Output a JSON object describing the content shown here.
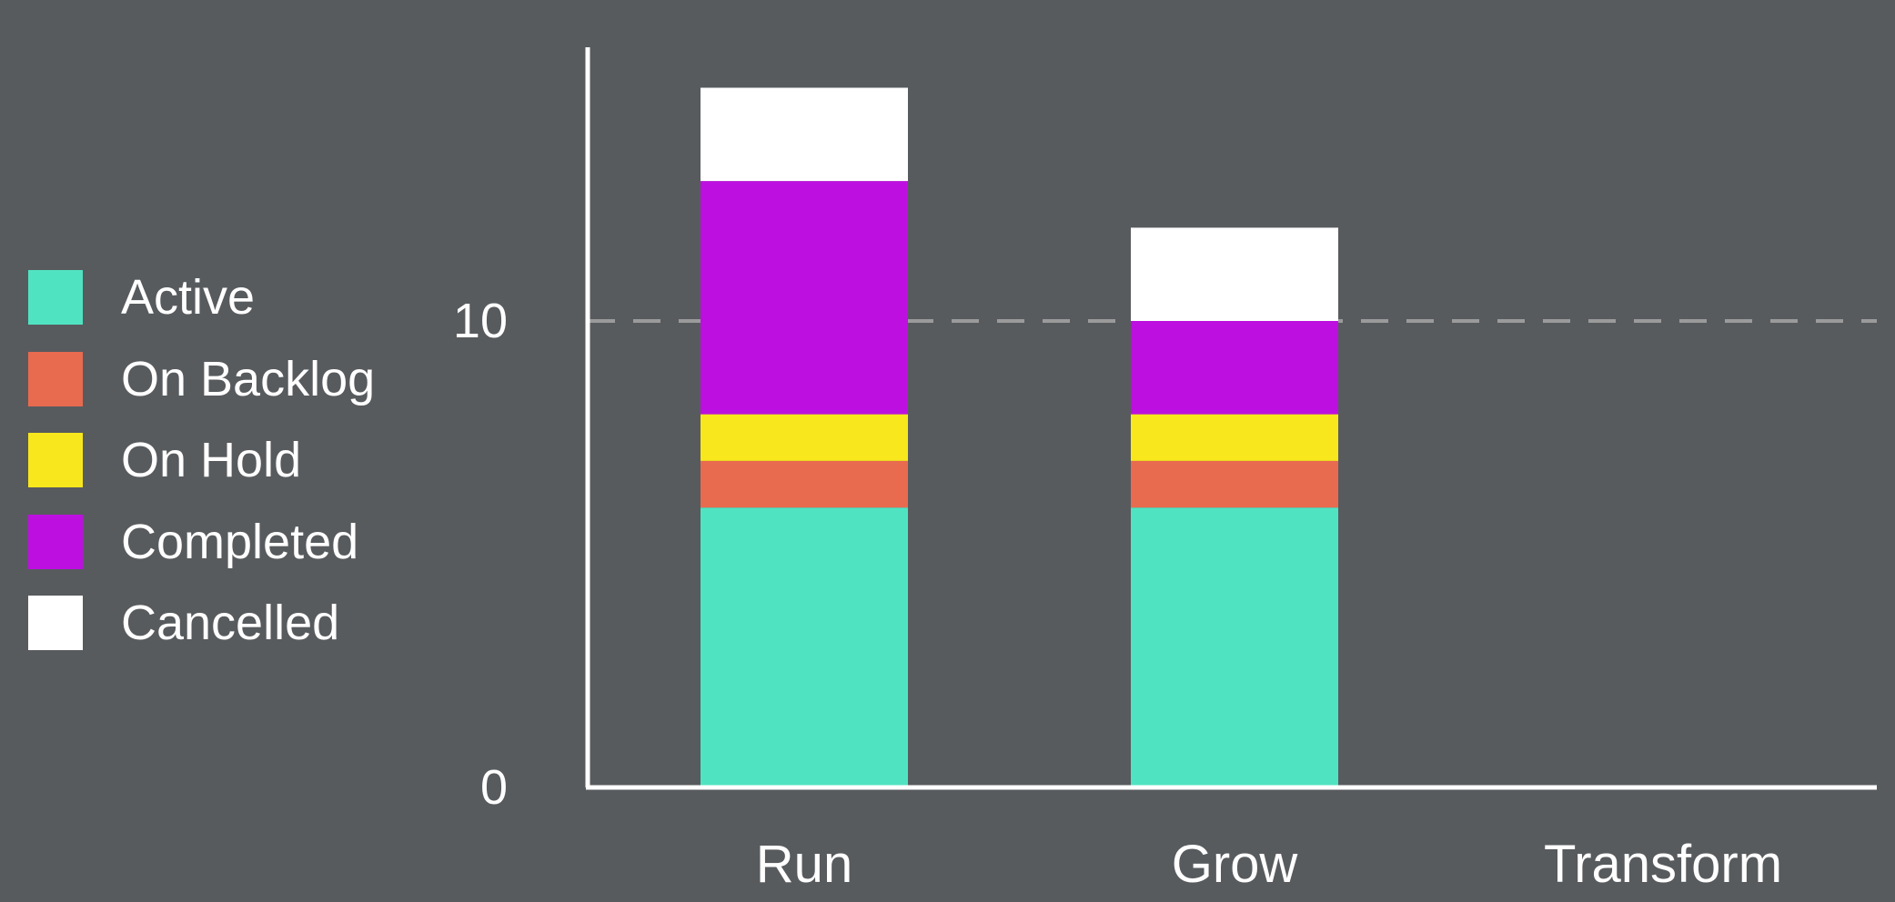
{
  "chart_data": {
    "type": "bar",
    "stacked": true,
    "categories": [
      "Run",
      "Grow",
      "Transform"
    ],
    "series": [
      {
        "name": "Active",
        "color": "#50e3c2",
        "values": [
          6,
          6,
          0
        ]
      },
      {
        "name": "On Backlog",
        "color": "#e86b4f",
        "values": [
          1,
          1,
          0
        ]
      },
      {
        "name": "On Hold",
        "color": "#f8e71c",
        "values": [
          1,
          1,
          0
        ]
      },
      {
        "name": "Completed",
        "color": "#bd10e0",
        "values": [
          5,
          2,
          0
        ]
      },
      {
        "name": "Cancelled",
        "color": "#ffffff",
        "values": [
          2,
          2,
          0
        ]
      }
    ],
    "yticks": [
      "0",
      "10"
    ],
    "ylim": [
      0,
      15.8
    ],
    "reference_line": {
      "y": 10,
      "style": "dashed",
      "color": "#9b9b9b"
    },
    "legend_position": "left",
    "grid": false,
    "title": "",
    "xlabel": "",
    "ylabel": ""
  },
  "colors": {
    "background": "#585b5e",
    "axis": "#ffffff",
    "text": "#ffffff"
  }
}
